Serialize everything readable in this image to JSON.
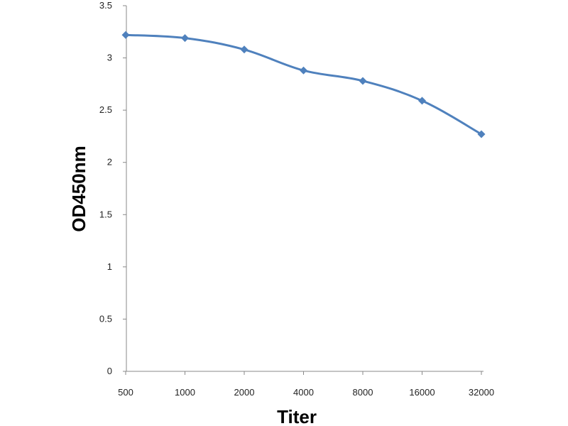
{
  "chart_data": {
    "type": "line",
    "xlabel": "Titer",
    "ylabel": "OD450nm",
    "categories": [
      "500",
      "1000",
      "2000",
      "4000",
      "8000",
      "16000",
      "32000"
    ],
    "series": [
      {
        "values": [
          3.22,
          3.19,
          3.08,
          2.88,
          2.78,
          2.59,
          2.27
        ],
        "color": "#4F81BD"
      }
    ],
    "ylim": [
      0,
      3.5
    ],
    "yticks": [
      "0",
      "0.5",
      "1",
      "1.5",
      "2",
      "2.5",
      "3",
      "3.5"
    ],
    "grid": false,
    "legend": "none",
    "marker": "diamond"
  }
}
